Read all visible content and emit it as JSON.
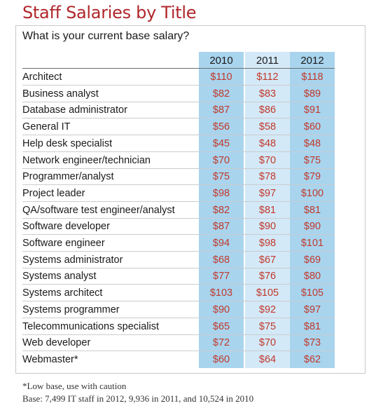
{
  "chart_data": {
    "type": "table",
    "title": "Staff Salaries by Title",
    "subtitle": "What is your current base salary?",
    "columns": [
      "2010",
      "2011",
      "2012"
    ],
    "rows": [
      {
        "label": "Architect",
        "values": [
          "$110",
          "$112",
          "$118"
        ]
      },
      {
        "label": "Business analyst",
        "values": [
          "$82",
          "$83",
          "$89"
        ]
      },
      {
        "label": "Database administrator",
        "values": [
          "$87",
          "$86",
          "$91"
        ]
      },
      {
        "label": "General IT",
        "values": [
          "$56",
          "$58",
          "$60"
        ]
      },
      {
        "label": "Help desk specialist",
        "values": [
          "$45",
          "$48",
          "$48"
        ]
      },
      {
        "label": "Network engineer/technician",
        "values": [
          "$70",
          "$70",
          "$75"
        ]
      },
      {
        "label": "Programmer/analyst",
        "values": [
          "$75",
          "$78",
          "$79"
        ]
      },
      {
        "label": "Project leader",
        "values": [
          "$98",
          "$97",
          "$100"
        ]
      },
      {
        "label": "QA/software test engineer/analyst",
        "values": [
          "$82",
          "$81",
          "$81"
        ]
      },
      {
        "label": "Software developer",
        "values": [
          "$87",
          "$90",
          "$90"
        ]
      },
      {
        "label": "Software engineer",
        "values": [
          "$94",
          "$98",
          "$101"
        ]
      },
      {
        "label": "Systems administrator",
        "values": [
          "$68",
          "$67",
          "$69"
        ]
      },
      {
        "label": "Systems analyst",
        "values": [
          "$77",
          "$76",
          "$80"
        ]
      },
      {
        "label": "Systems architect",
        "values": [
          "$103",
          "$105",
          "$105"
        ]
      },
      {
        "label": "Systems programmer",
        "values": [
          "$90",
          "$92",
          "$97"
        ]
      },
      {
        "label": "Telecommunications specialist",
        "values": [
          "$65",
          "$75",
          "$81"
        ]
      },
      {
        "label": "Web developer",
        "values": [
          "$72",
          "$70",
          "$73"
        ]
      },
      {
        "label": "Webmaster*",
        "values": [
          "$60",
          "$64",
          "$62"
        ]
      }
    ],
    "footnotes": [
      "*Low base, use with caution",
      "Base: 7,499 IT staff in 2012, 9,936 in 2011, and 10,524 in 2010"
    ],
    "colors": {
      "title": "#b0262a",
      "values": "#c0392b",
      "band_light": "#d4e9f7",
      "band_dark": "#a9d4ee"
    }
  }
}
